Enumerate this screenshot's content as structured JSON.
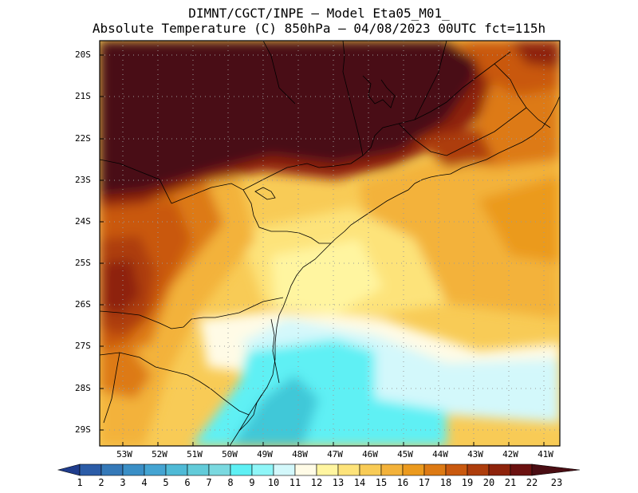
{
  "header": {
    "line1": "DIMNT/CGCT/INPE –  Model Eta05_M01_",
    "line2": "Absolute Temperature (C) 850hPa –  04/08/2023 00UTC fct=115h"
  },
  "axes": {
    "lat_labels": [
      "20S",
      "21S",
      "22S",
      "23S",
      "24S",
      "25S",
      "26S",
      "27S",
      "28S",
      "29S"
    ],
    "lon_labels": [
      "53W",
      "52W",
      "51W",
      "50W",
      "49W",
      "48W",
      "47W",
      "46W",
      "45W",
      "44W",
      "43W",
      "42W",
      "41W"
    ]
  },
  "colorbar": {
    "labels": [
      "1",
      "2",
      "3",
      "4",
      "5",
      "6",
      "7",
      "8",
      "9",
      "10",
      "11",
      "12",
      "13",
      "14",
      "15",
      "16",
      "17",
      "18",
      "19",
      "20",
      "21",
      "22",
      "23"
    ],
    "colors": [
      "#1f3c8c",
      "#2b5ca7",
      "#3579b8",
      "#3a8fc6",
      "#44a4d2",
      "#4fbad6",
      "#62cbd9",
      "#7ad9e0",
      "#5ef0f4",
      "#8ff6f8",
      "#d3f8fb",
      "#fffbe6",
      "#fff5a0",
      "#fde37a",
      "#f8cb56",
      "#f3b23a",
      "#eb9a1e",
      "#dd7a14",
      "#c9590f",
      "#ad3d0c",
      "#8e230b",
      "#6b1110",
      "#4a0d13"
    ]
  }
}
